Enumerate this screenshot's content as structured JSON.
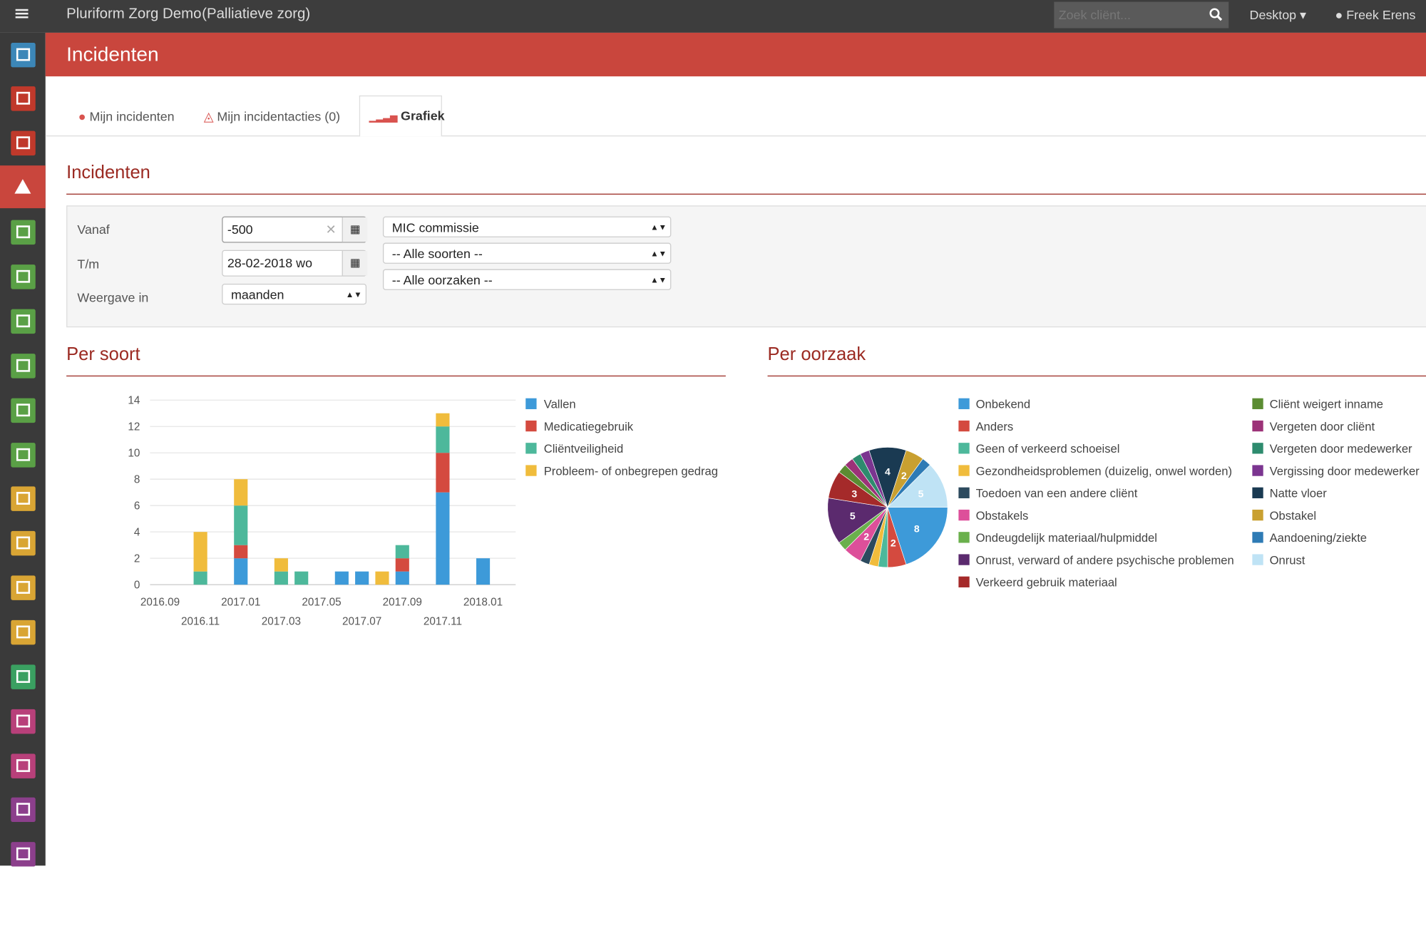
{
  "header": {
    "app_title": "Pluriform Zorg Demo",
    "context": "(Palliatieve zorg)",
    "search_placeholder": "Zoek cliënt...",
    "desktop_menu": "Desktop",
    "user": "Freek Erens"
  },
  "page_title": "Incidenten",
  "tabs": [
    "Mijn incidenten",
    "Mijn incidentacties (0)",
    "Grafiek"
  ],
  "section_title": "Incidenten",
  "form": {
    "fields": [
      {
        "label": "Vanaf",
        "value": "-500"
      },
      {
        "label": "T/m",
        "value": "28-02-2018 wo"
      },
      {
        "label": "Weergave in",
        "value": "maanden"
      }
    ],
    "selects": [
      "MIC commissie",
      "-- Alle soorten --",
      "-- Alle oorzaken --"
    ]
  },
  "chart_data": [
    {
      "type": "bar",
      "stacked": true,
      "title": "Per soort",
      "categories": [
        "2016.09",
        null,
        "2016.11",
        null,
        "2017.01",
        null,
        "2017.03",
        null,
        "2017.05",
        null,
        "2017.07",
        null,
        "2017.09",
        null,
        "2017.11",
        null,
        "2018.01"
      ],
      "series": [
        {
          "name": "Vallen",
          "color": "#3d9ad9",
          "values": [
            0,
            0,
            0,
            0,
            2,
            0,
            0,
            0,
            0,
            1,
            1,
            0,
            1,
            0,
            7,
            0,
            2
          ]
        },
        {
          "name": "Medicatiegebruik",
          "color": "#d44a3f",
          "values": [
            0,
            0,
            0,
            0,
            1,
            0,
            0,
            0,
            0,
            0,
            0,
            0,
            1,
            0,
            3,
            0,
            0
          ]
        },
        {
          "name": "Cliëntveiligheid",
          "color": "#4db89b",
          "values": [
            0,
            0,
            1,
            0,
            3,
            0,
            1,
            1,
            0,
            0,
            0,
            0,
            1,
            0,
            2,
            0,
            0
          ]
        },
        {
          "name": "Probleem- of onbegrepen gedrag",
          "color": "#f0bc3c",
          "values": [
            0,
            0,
            3,
            0,
            2,
            0,
            1,
            0,
            0,
            0,
            0,
            1,
            0,
            0,
            1,
            0,
            0
          ]
        }
      ],
      "ylim": [
        0,
        14
      ],
      "yticks": [
        0,
        2,
        4,
        6,
        8,
        10,
        12,
        14
      ],
      "grid": true
    },
    {
      "type": "pie",
      "title": "Per oorzaak",
      "categories": [
        "Onbekend",
        "Anders",
        "Geen of verkeerd schoeisel",
        "Gezondheidsproblemen (duizelig, onwel worden)",
        "Toedoen van een andere cliënt",
        "Obstakels",
        "Ondeugdelijk materiaal/hulpmiddel",
        "Onrust, verward of andere psychische problemen",
        "Verkeerd gebruik materiaal",
        "Cliënt weigert inname",
        "Vergeten door cliënt",
        "Vergeten door medewerker",
        "Vergissing door medewerker",
        "Natte vloer",
        "Obstakel",
        "Aandoening/ziekte",
        "Onrust"
      ],
      "values": [
        8,
        2,
        1,
        1,
        1,
        2,
        1,
        5,
        3,
        1,
        1,
        1,
        1,
        4,
        2,
        1,
        5
      ],
      "colors": [
        "#3d9ad9",
        "#d44a3f",
        "#4db89b",
        "#f0bc3c",
        "#2c4a5e",
        "#dd4f9a",
        "#6ab04c",
        "#5b2a6e",
        "#a52a2a",
        "#5b8c32",
        "#9c3278",
        "#2e8b6e",
        "#7b3590",
        "#1a3a52",
        "#c9a030",
        "#2e7bb5",
        "#bfe3f5"
      ]
    }
  ]
}
